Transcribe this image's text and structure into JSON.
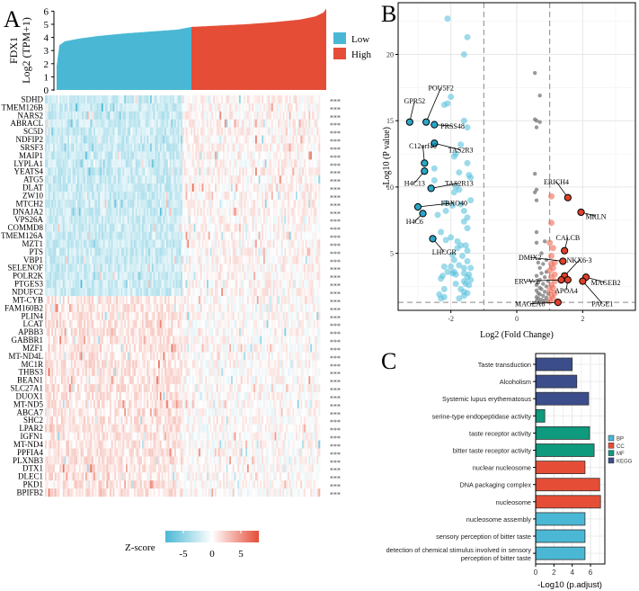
{
  "panels": {
    "a": "A",
    "b": "B",
    "c": "C"
  },
  "chart_data": [
    {
      "type": "area",
      "panel": "A-top",
      "title": "",
      "ylabel_line1": "FDX1",
      "ylabel_line2": "Log2 (TPM+1)",
      "ylim": [
        0,
        6.3
      ],
      "yticks": [
        "0",
        "1",
        "2",
        "3",
        "4",
        "5",
        "6"
      ],
      "sorted_expression_quantiles": [
        [
          0,
          1.8
        ],
        [
          0.01,
          3.4
        ],
        [
          0.03,
          3.7
        ],
        [
          0.08,
          3.9
        ],
        [
          0.15,
          4.1
        ],
        [
          0.25,
          4.3
        ],
        [
          0.35,
          4.45
        ],
        [
          0.45,
          4.6
        ],
        [
          0.5,
          4.8
        ],
        [
          0.6,
          4.9
        ],
        [
          0.7,
          5.0
        ],
        [
          0.8,
          5.15
        ],
        [
          0.9,
          5.35
        ],
        [
          0.96,
          5.6
        ],
        [
          0.99,
          5.9
        ],
        [
          1.0,
          6.2
        ]
      ],
      "split_fraction": 0.5,
      "legend": [
        {
          "name": "Low",
          "color": "#4ab8d4"
        },
        {
          "name": "High",
          "color": "#e54d37"
        }
      ],
      "legend_position": "right"
    },
    {
      "type": "heatmap",
      "panel": "A-heatmap",
      "genes": [
        "SDHD",
        "TMEM126B",
        "NARS2",
        "ABRACL",
        "SC5D",
        "NDFIP2",
        "SRSF3",
        "MAIP1",
        "LYPLA1",
        "YEATS4",
        "ATG5",
        "DLAT",
        "ZW10",
        "MTCH2",
        "DNAJA2",
        "VPS26A",
        "COMMD8",
        "TMEM126A",
        "MZT1",
        "PTS",
        "VBP1",
        "SELENOF",
        "POLR2K",
        "PTGES3",
        "NDUFC2",
        "MT-CYB",
        "FAM160B2",
        "PLIN4",
        "LCAT",
        "APBB3",
        "GABBR1",
        "MZF1",
        "MT-ND4L",
        "MC1R",
        "THBS3",
        "BEAN1",
        "SLC27A1",
        "DUOX1",
        "MT-ND5",
        "ABCA7",
        "SHC2",
        "LPAR2",
        "IGFN1",
        "MT-ND4",
        "PPFIA4",
        "PLXNB3",
        "DTX1",
        "DLEC1",
        "PKD1",
        "BPIFB2"
      ],
      "significance": "***",
      "down_in_low_gene_count": 25,
      "colorbar": {
        "title": "Z-score",
        "ticks": [
          "-5",
          "0",
          "5"
        ],
        "range": [
          -8,
          8
        ],
        "low_color": "#4ab8d4",
        "mid_color": "#ffffff",
        "high_color": "#e54d37"
      }
    },
    {
      "type": "scatter",
      "panel": "B",
      "xlabel": "Log2 (Fold Change)",
      "ylabel": "-Log10 (P value)",
      "xlim": [
        -3.6,
        3.6
      ],
      "ylim": [
        0.7,
        23.9
      ],
      "xticks": [
        "-2",
        "0",
        "2"
      ],
      "yticks": [
        "5",
        "10",
        "15",
        "20"
      ],
      "thresholds": {
        "logfc": 1,
        "neglog10p": 1.3
      },
      "colors": {
        "down": "#5bc3dd",
        "up": "#ef6a57",
        "ns": "#777777",
        "label_down": "#2aa6c8",
        "label_up": "#e0402a"
      },
      "down": [
        [
          -2.1,
          22.7
        ],
        [
          -1.5,
          21.3
        ],
        [
          -1.6,
          20
        ],
        [
          -2.0,
          16.8
        ],
        [
          -2.1,
          16.3
        ],
        [
          -2.2,
          16.2
        ],
        [
          -1.6,
          15
        ],
        [
          -1.5,
          14.5
        ],
        [
          -1.7,
          13.2
        ],
        [
          -1.9,
          12.3
        ],
        [
          -1.85,
          12.5
        ],
        [
          -1.5,
          11.8
        ],
        [
          -2.5,
          11.4
        ],
        [
          -1.75,
          11.1
        ],
        [
          -1.45,
          10.9
        ],
        [
          -1.4,
          10.7
        ],
        [
          -2.5,
          10.5
        ],
        [
          -1.85,
          10.0
        ],
        [
          -1.75,
          9.8
        ],
        [
          -1.9,
          9.6
        ],
        [
          -1.4,
          9.0
        ],
        [
          -2.15,
          8.8
        ],
        [
          -1.95,
          8.6
        ],
        [
          -1.7,
          8.7
        ],
        [
          -2.4,
          7.9
        ],
        [
          -2.15,
          8.2
        ],
        [
          -1.6,
          8.2
        ],
        [
          -1.5,
          7.7
        ],
        [
          -1.6,
          7.4
        ],
        [
          -1.5,
          6.9
        ],
        [
          -2.3,
          6.6
        ],
        [
          -2.0,
          6.2
        ],
        [
          -2.15,
          6.0
        ],
        [
          -1.8,
          5.9
        ],
        [
          -1.7,
          5.6
        ],
        [
          -1.55,
          5.6
        ],
        [
          -1.8,
          5.4
        ],
        [
          -1.5,
          5.2
        ],
        [
          -1.95,
          4.9
        ],
        [
          -1.65,
          4.8
        ],
        [
          -1.9,
          4.5
        ],
        [
          -1.5,
          4.4
        ],
        [
          -2.2,
          4.0
        ],
        [
          -2.0,
          4.0
        ],
        [
          -1.75,
          4.1
        ],
        [
          -1.6,
          3.9
        ],
        [
          -1.4,
          3.9
        ],
        [
          -2.1,
          3.6
        ],
        [
          -1.95,
          3.5
        ],
        [
          -1.85,
          3.4
        ],
        [
          -2.25,
          3.3
        ],
        [
          -1.9,
          3.6
        ],
        [
          -1.6,
          3.5
        ],
        [
          -1.45,
          3.4
        ],
        [
          -1.5,
          3.2
        ],
        [
          -1.4,
          3.0
        ],
        [
          -1.6,
          2.9
        ],
        [
          -2.3,
          3.1
        ],
        [
          -1.85,
          2.7
        ],
        [
          -1.55,
          2.7
        ],
        [
          -1.45,
          2.6
        ],
        [
          -2.2,
          2.3
        ],
        [
          -1.7,
          2.3
        ],
        [
          -1.6,
          2.1
        ],
        [
          -1.5,
          2.0
        ],
        [
          -2.35,
          1.9
        ],
        [
          -2.2,
          1.7
        ],
        [
          -1.75,
          1.6
        ],
        [
          -2.3,
          1.6
        ],
        [
          -1.6,
          1.8
        ]
      ],
      "ns": [
        [
          0.55,
          18.6
        ],
        [
          0.7,
          16.9
        ],
        [
          0.55,
          15.1
        ],
        [
          0.6,
          15
        ],
        [
          0.7,
          14.9
        ],
        [
          0.6,
          14.5
        ],
        [
          0.55,
          11
        ],
        [
          0.6,
          9.8
        ],
        [
          0.55,
          9.6
        ],
        [
          0.6,
          9.0
        ],
        [
          0.6,
          6.6
        ],
        [
          0.6,
          5.8
        ],
        [
          0.85,
          5.9
        ],
        [
          0.75,
          5.0
        ],
        [
          0.9,
          4.5
        ],
        [
          0.65,
          4.3
        ],
        [
          0.8,
          4.2
        ],
        [
          0.7,
          3.9
        ],
        [
          0.9,
          3.6
        ],
        [
          0.75,
          3.5
        ],
        [
          0.6,
          3.3
        ],
        [
          0.85,
          3.2
        ],
        [
          0.7,
          3.0
        ],
        [
          0.95,
          2.9
        ],
        [
          0.65,
          2.8
        ],
        [
          0.8,
          2.7
        ],
        [
          0.6,
          2.6
        ],
        [
          0.9,
          2.5
        ],
        [
          0.7,
          2.4
        ],
        [
          0.75,
          2.3
        ],
        [
          0.6,
          2.2
        ],
        [
          0.85,
          2.1
        ],
        [
          0.65,
          2.0
        ],
        [
          0.95,
          1.95
        ],
        [
          0.7,
          1.9
        ],
        [
          0.8,
          1.8
        ],
        [
          0.6,
          1.7
        ],
        [
          0.9,
          1.65
        ],
        [
          0.65,
          1.6
        ],
        [
          0.75,
          1.5
        ],
        [
          0.85,
          1.45
        ],
        [
          0.6,
          1.4
        ],
        [
          0.7,
          1.35
        ],
        [
          0.95,
          1.35
        ]
      ],
      "up": [
        [
          1.05,
          9.3
        ],
        [
          1.05,
          7.3
        ],
        [
          1.0,
          5.8
        ],
        [
          1.1,
          5.4
        ],
        [
          1.05,
          4.8
        ],
        [
          1.15,
          4.3
        ],
        [
          1.05,
          4.2
        ],
        [
          1.1,
          3.9
        ],
        [
          1.0,
          3.7
        ],
        [
          1.15,
          3.4
        ],
        [
          1.05,
          3.2
        ],
        [
          1.15,
          2.9
        ],
        [
          1.05,
          2.6
        ],
        [
          1.1,
          2.4
        ],
        [
          1.0,
          2.2
        ],
        [
          1.15,
          2.0
        ],
        [
          1.05,
          1.8
        ],
        [
          1.1,
          1.6
        ],
        [
          1.0,
          1.4
        ]
      ],
      "labeled": [
        {
          "gene": "GPR52",
          "x": -3.25,
          "y": 14.9,
          "dir": "down",
          "lx": -3.1,
          "ly": 16.3
        },
        {
          "gene": "POU5F2",
          "x": -2.75,
          "y": 14.9,
          "dir": "down",
          "lx": -2.3,
          "ly": 17.3
        },
        {
          "gene": "PRSS48",
          "x": -2.5,
          "y": 14.7,
          "dir": "down",
          "lx": -1.95,
          "ly": 14.4
        },
        {
          "gene": "TAS2R3",
          "x": -2.5,
          "y": 13.3,
          "dir": "down",
          "lx": -1.7,
          "ly": 12.6
        },
        {
          "gene": "C12orf40",
          "x": -2.8,
          "y": 11.8,
          "dir": "down",
          "lx": -2.85,
          "ly": 12.9
        },
        {
          "gene": "H4C13",
          "x": -2.8,
          "y": 11.2,
          "dir": "down",
          "lx": -3.1,
          "ly": 10.1
        },
        {
          "gene": "TAS2R13",
          "x": -2.6,
          "y": 9.9,
          "dir": "down",
          "lx": -1.75,
          "ly": 10.1
        },
        {
          "gene": "FBXO40",
          "x": -3.0,
          "y": 8.5,
          "dir": "down",
          "lx": -1.9,
          "ly": 8.6
        },
        {
          "gene": "H4C6",
          "x": -2.85,
          "y": 8.0,
          "dir": "down",
          "lx": -3.1,
          "ly": 7.2
        },
        {
          "gene": "LHCGR",
          "x": -2.55,
          "y": 6.1,
          "dir": "down",
          "lx": -2.2,
          "ly": 4.9
        },
        {
          "gene": "ERICH4",
          "x": 1.55,
          "y": 9.2,
          "dir": "up",
          "lx": 1.2,
          "ly": 10.2
        },
        {
          "gene": "MRLN",
          "x": 1.95,
          "y": 8.1,
          "dir": "up",
          "lx": 2.4,
          "ly": 7.6
        },
        {
          "gene": "CALCB",
          "x": 1.45,
          "y": 5.2,
          "dir": "up",
          "lx": 1.55,
          "ly": 6.0
        },
        {
          "gene": "DMIX2",
          "x": 1.4,
          "y": 4.4,
          "dir": "up",
          "lx": 0.4,
          "ly": 4.5
        },
        {
          "gene": "NKX6-3",
          "x": 1.45,
          "y": 3.3,
          "dir": "up",
          "lx": 1.9,
          "ly": 4.3
        },
        {
          "gene": "ERVV-2",
          "x": 1.35,
          "y": 3.0,
          "dir": "up",
          "lx": 0.3,
          "ly": 2.7
        },
        {
          "gene": "APOA4",
          "x": 1.55,
          "y": 3.0,
          "dir": "up",
          "lx": 1.5,
          "ly": 2.0
        },
        {
          "gene": "MAGEB2",
          "x": 2.1,
          "y": 3.2,
          "dir": "up",
          "lx": 2.7,
          "ly": 2.6
        },
        {
          "gene": "PAGE1",
          "x": 2.0,
          "y": 2.9,
          "dir": "up",
          "lx": 2.6,
          "ly": 1.0
        },
        {
          "gene": "MAGEA6",
          "x": 1.25,
          "y": 1.3,
          "dir": "up",
          "lx": 0.4,
          "ly": 1.0
        }
      ]
    },
    {
      "type": "bar",
      "orientation": "horizontal",
      "panel": "C",
      "xlabel": "-Log10 (p.adjust)",
      "xlim": [
        0,
        7.5
      ],
      "xticks": [
        "0",
        "2",
        "4",
        "6"
      ],
      "categories": [
        "Taste transduction",
        "Alcoholism",
        "Systemic lupus erythematosus",
        "serine-type endopeptidase activity",
        "taste receptor activity",
        "bitter taste receptor activity",
        "nuclear nucleosome",
        "DNA packaging complex",
        "nucleosome",
        "nucleosome assembly",
        "sensory perception of bitter taste",
        "detection of chemical stimulus involved in sensory|perception of bitter taste"
      ],
      "values": [
        4.0,
        4.5,
        5.8,
        1.0,
        5.9,
        6.4,
        5.4,
        7.0,
        7.1,
        5.4,
        5.4,
        5.4
      ],
      "groups": [
        "KEGG",
        "KEGG",
        "KEGG",
        "MF",
        "MF",
        "MF",
        "CC",
        "CC",
        "CC",
        "BP",
        "BP",
        "BP"
      ],
      "legend": [
        {
          "name": "BP",
          "color": "#4ab8d4"
        },
        {
          "name": "CC",
          "color": "#e54d37"
        },
        {
          "name": "MF",
          "color": "#0e9a7d"
        },
        {
          "name": "KEGG",
          "color": "#3b4d8a"
        }
      ],
      "legend_position": "right"
    }
  ]
}
